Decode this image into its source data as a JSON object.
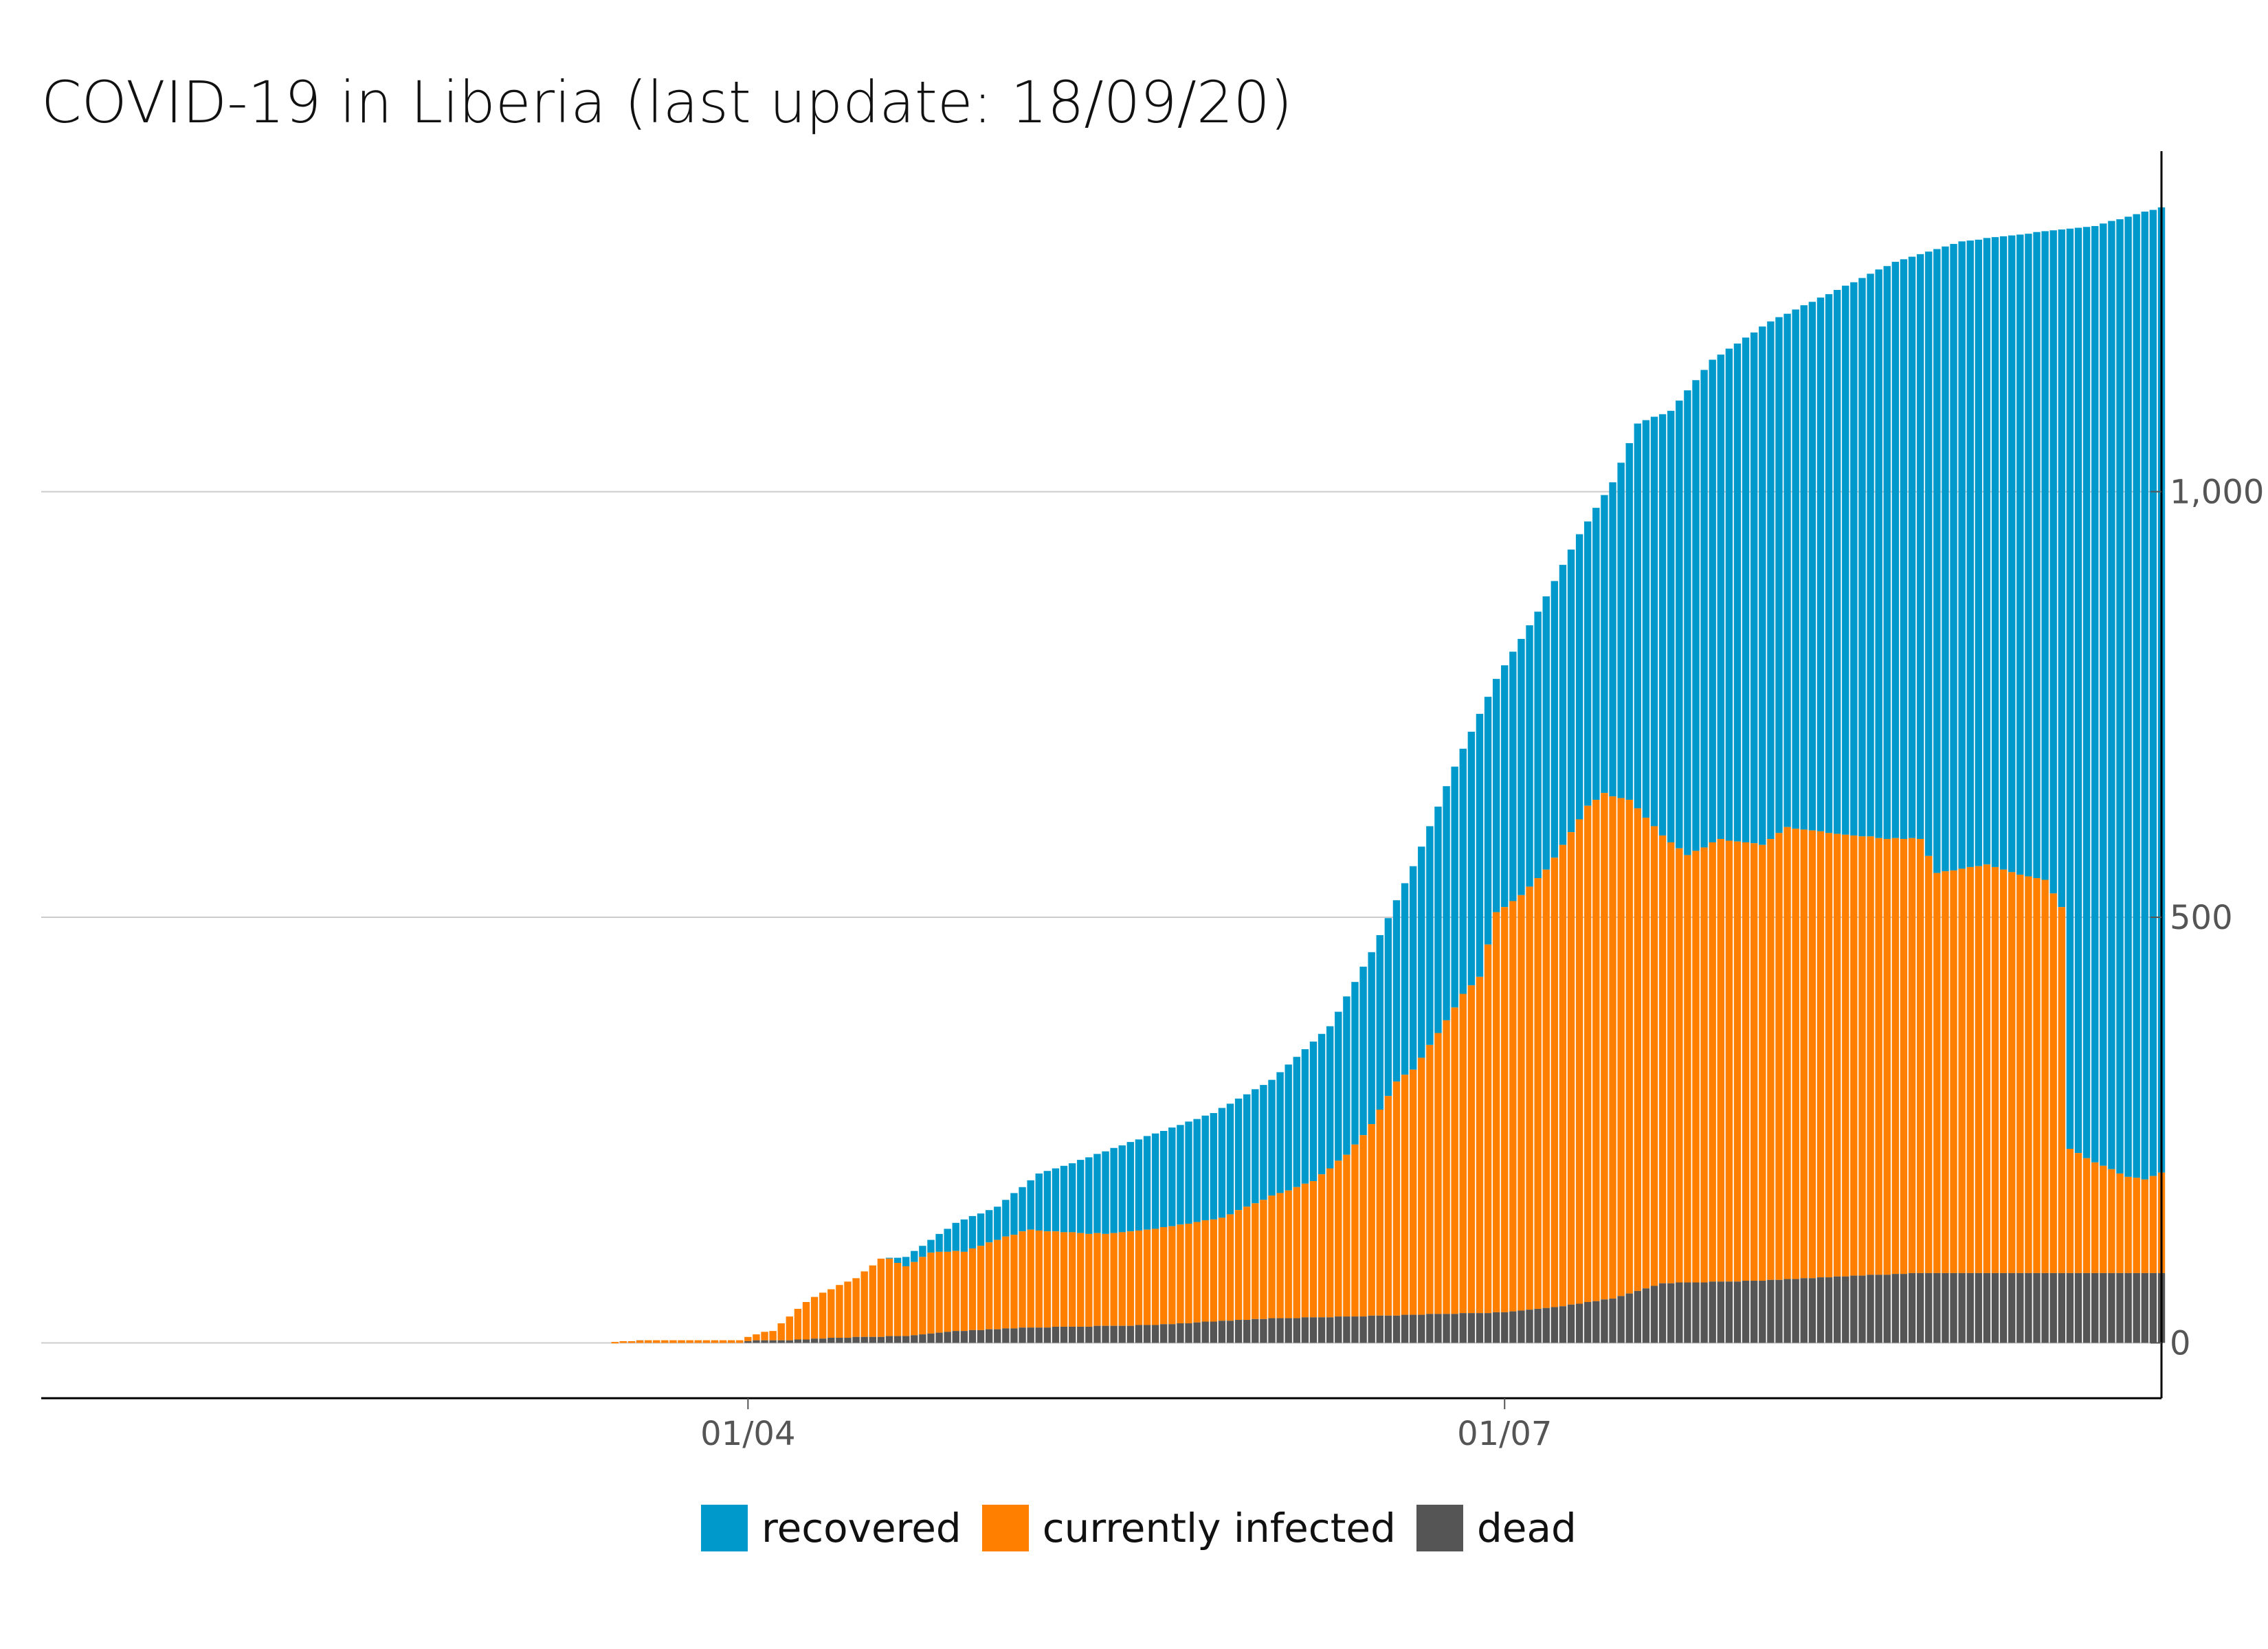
{
  "colors": {
    "recovered": "#0099cc",
    "infected": "#ff8000",
    "dead": "#555555",
    "grid": "#cccccc",
    "axis": "#000000"
  },
  "chart_data": {
    "type": "bar",
    "stacked": true,
    "title": "COVID-19 in Liberia (last update: 18/09/20)",
    "x_range": [
      "2020-01-07",
      "2020-09-18"
    ],
    "first_bar": "2020-03-16",
    "last_bar": "2020-09-18",
    "x_ticks": [
      {
        "date": "2020-04-01",
        "label": "01/04"
      },
      {
        "date": "2020-07-01",
        "label": "01/07"
      }
    ],
    "y_axis_position": "right",
    "ylim": [
      -65,
      1400
    ],
    "y_ticks": [
      {
        "value": 0,
        "label": "0"
      },
      {
        "value": 500,
        "label": "500"
      },
      {
        "value": 1000,
        "label": "1,000"
      }
    ],
    "grid": "horizontal",
    "legend_position": "bottom",
    "series": [
      {
        "name": "recovered",
        "color_key": "recovered"
      },
      {
        "name": "currently infected",
        "color_key": "infected"
      },
      {
        "name": "dead",
        "color_key": "dead"
      }
    ],
    "total_knots": [
      [
        "2020-03-16",
        1
      ],
      [
        "2020-03-20",
        3
      ],
      [
        "2020-03-31",
        3
      ],
      [
        "2020-04-01",
        7
      ],
      [
        "2020-04-03",
        13
      ],
      [
        "2020-04-04",
        14
      ],
      [
        "2020-04-06",
        31
      ],
      [
        "2020-04-08",
        48
      ],
      [
        "2020-04-10",
        59
      ],
      [
        "2020-04-14",
        76
      ],
      [
        "2020-04-17",
        99
      ],
      [
        "2020-04-20",
        101
      ],
      [
        "2020-04-26",
        141
      ],
      [
        "2020-05-01",
        160
      ],
      [
        "2020-05-06",
        199
      ],
      [
        "2020-05-10",
        211
      ],
      [
        "2020-05-20",
        246
      ],
      [
        "2020-05-27",
        270
      ],
      [
        "2020-06-03",
        309
      ],
      [
        "2020-06-10",
        372
      ],
      [
        "2020-06-15",
        459
      ],
      [
        "2020-06-20",
        560
      ],
      [
        "2020-06-25",
        677
      ],
      [
        "2020-06-30",
        780
      ],
      [
        "2020-07-05",
        859
      ],
      [
        "2020-07-10",
        950
      ],
      [
        "2020-07-14",
        1011
      ],
      [
        "2020-07-17",
        1080
      ],
      [
        "2020-07-21",
        1095
      ],
      [
        "2020-07-26",
        1155
      ],
      [
        "2020-08-02",
        1200
      ],
      [
        "2020-08-10",
        1237
      ],
      [
        "2020-08-17",
        1270
      ],
      [
        "2020-08-25",
        1294
      ],
      [
        "2020-09-05",
        1307
      ],
      [
        "2020-09-10",
        1312
      ],
      [
        "2020-09-18",
        1334
      ]
    ],
    "dead_knots": [
      [
        "2020-03-16",
        0
      ],
      [
        "2020-04-05",
        3
      ],
      [
        "2020-04-12",
        6
      ],
      [
        "2020-04-20",
        8
      ],
      [
        "2020-04-26",
        14
      ],
      [
        "2020-05-05",
        18
      ],
      [
        "2020-05-20",
        21
      ],
      [
        "2020-06-01",
        28
      ],
      [
        "2020-06-20",
        33
      ],
      [
        "2020-07-01",
        36
      ],
      [
        "2020-07-08",
        43
      ],
      [
        "2020-07-14",
        52
      ],
      [
        "2020-07-20",
        70
      ],
      [
        "2020-08-01",
        73
      ],
      [
        "2020-08-10",
        78
      ],
      [
        "2020-08-20",
        82
      ],
      [
        "2020-09-18",
        82
      ]
    ],
    "infected_knots": [
      [
        "2020-03-16",
        1
      ],
      [
        "2020-03-31",
        3
      ],
      [
        "2020-04-01",
        7
      ],
      [
        "2020-04-03",
        13
      ],
      [
        "2020-04-06",
        31
      ],
      [
        "2020-04-10",
        58
      ],
      [
        "2020-04-14",
        76
      ],
      [
        "2020-04-17",
        95
      ],
      [
        "2020-04-20",
        82
      ],
      [
        "2020-04-23",
        95
      ],
      [
        "2020-04-27",
        93
      ],
      [
        "2020-05-01",
        105
      ],
      [
        "2020-05-05",
        115
      ],
      [
        "2020-05-08",
        112
      ],
      [
        "2020-05-14",
        108
      ],
      [
        "2020-05-21",
        114
      ],
      [
        "2020-05-28",
        121
      ],
      [
        "2020-06-03",
        144
      ],
      [
        "2020-06-08",
        160
      ],
      [
        "2020-06-12",
        190
      ],
      [
        "2020-06-15",
        225
      ],
      [
        "2020-06-18",
        275
      ],
      [
        "2020-06-20",
        288
      ],
      [
        "2020-06-23",
        330
      ],
      [
        "2020-06-26",
        375
      ],
      [
        "2020-06-28",
        395
      ],
      [
        "2020-06-30",
        470
      ],
      [
        "2020-07-03",
        488
      ],
      [
        "2020-07-06",
        515
      ],
      [
        "2020-07-09",
        555
      ],
      [
        "2020-07-11",
        583
      ],
      [
        "2020-07-13",
        595
      ],
      [
        "2020-07-16",
        580
      ],
      [
        "2020-07-20",
        526
      ],
      [
        "2020-07-23",
        502
      ],
      [
        "2020-07-27",
        520
      ],
      [
        "2020-08-01",
        512
      ],
      [
        "2020-08-04",
        531
      ],
      [
        "2020-08-10",
        520
      ],
      [
        "2020-08-16",
        512
      ],
      [
        "2020-08-20",
        510
      ],
      [
        "2020-08-22",
        470
      ],
      [
        "2020-08-28",
        480
      ],
      [
        "2020-09-01",
        468
      ],
      [
        "2020-09-04",
        462
      ],
      [
        "2020-09-06",
        430
      ],
      [
        "2020-09-07",
        146
      ],
      [
        "2020-09-10",
        130
      ],
      [
        "2020-09-14",
        113
      ],
      [
        "2020-09-16",
        110
      ],
      [
        "2020-09-18",
        118
      ]
    ]
  },
  "legend": {
    "recovered_label": "recovered",
    "infected_label": "currently infected",
    "dead_label": "dead"
  }
}
